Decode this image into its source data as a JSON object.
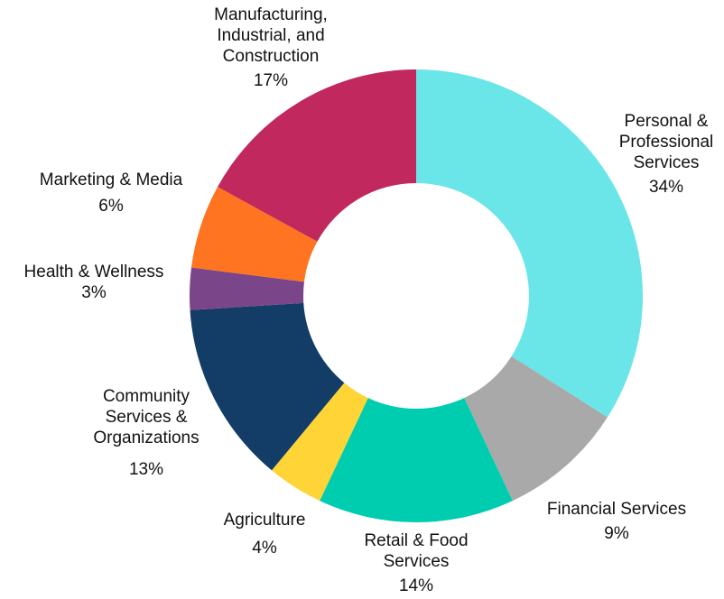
{
  "chart_data": {
    "type": "donut",
    "categories": [
      "Personal & Professional Services",
      "Financial Services",
      "Retail & Food Services",
      "Agriculture",
      "Community Services & Organizations",
      "Health & Wellness",
      "Marketing & Media",
      "Manufacturing, Industrial, and Construction"
    ],
    "values": [
      34,
      9,
      14,
      4,
      13,
      3,
      6,
      17
    ],
    "value_labels": [
      "34%",
      "9%",
      "14%",
      "4%",
      "13%",
      "3%",
      "6%",
      "17%"
    ],
    "colors": [
      "#6ae5e8",
      "#a9a9a9",
      "#00cdb0",
      "#fed436",
      "#133d66",
      "#7b4589",
      "#fe7420",
      "#c0285e"
    ]
  }
}
